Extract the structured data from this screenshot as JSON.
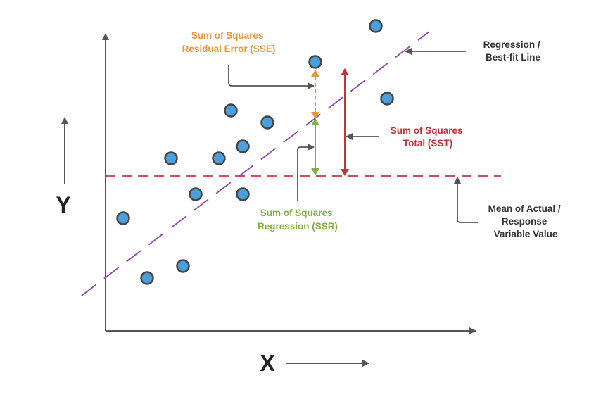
{
  "axes": {
    "x_label": "X",
    "y_label": "Y"
  },
  "labels": {
    "sse": [
      "Sum of Squares",
      "Residual Error (SSE)"
    ],
    "sst": [
      "Sum of Squares",
      "Total (SST)"
    ],
    "ssr": [
      "Sum of Squares",
      "Regression (SSR)"
    ],
    "regression": [
      "Regression /",
      "Best-fit Line"
    ],
    "mean": [
      "Mean of Actual /",
      "Response",
      "Variable Value"
    ]
  },
  "colors": {
    "points": "#4a9fdc",
    "point_stroke": "#444444",
    "regression_line": "#8e44ad",
    "mean_line": "#c8373e",
    "sse": "#e8963a",
    "ssr": "#7cb342",
    "sst": "#c0343c",
    "pointer": "#555555"
  }
}
